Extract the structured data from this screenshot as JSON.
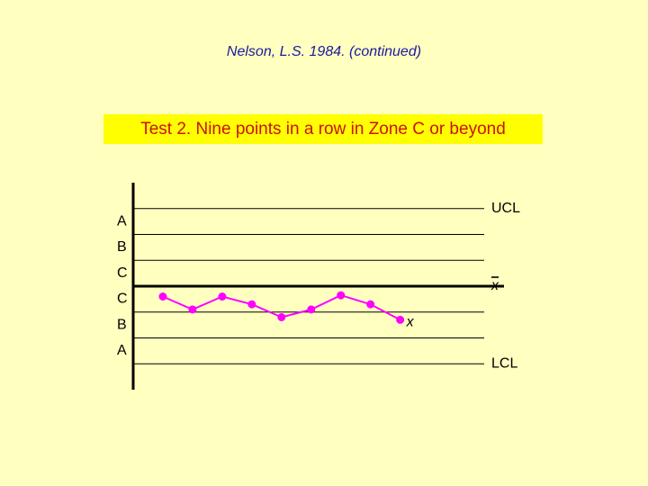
{
  "chart_data": {
    "type": "line",
    "title": "Nelson, L.S. 1984. (continued)",
    "subtitle": "Test 2. Nine points in a row in Zone C or beyond",
    "x": [
      1,
      2,
      3,
      4,
      5,
      6,
      7,
      8,
      9
    ],
    "series": [
      {
        "color": "#ff00ff",
        "values": [
          -0.4,
          -0.9,
          -0.4,
          -0.7,
          -1.2,
          -0.9,
          -0.35,
          -0.7,
          -1.3
        ]
      }
    ],
    "xlim": [
      0,
      12.5
    ],
    "ylim": [
      -4,
      4
    ],
    "control_lines": [
      {
        "value": 3,
        "label": "UCL"
      },
      {
        "value": 2
      },
      {
        "value": 1
      },
      {
        "value": 0,
        "label": "x"
      },
      {
        "value": -1
      },
      {
        "value": -2
      },
      {
        "value": -3,
        "label": "LCL"
      }
    ],
    "zones": [
      "A",
      "B",
      "C",
      "C",
      "B",
      "A"
    ],
    "annotation": "x"
  }
}
